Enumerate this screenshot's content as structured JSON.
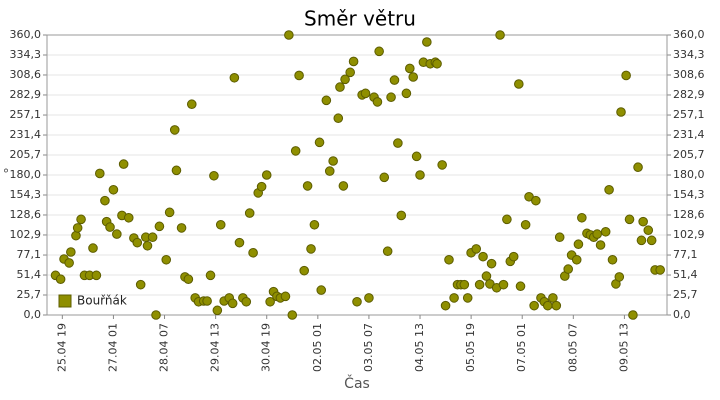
{
  "chart_data": {
    "type": "scatter",
    "title": "Směr větru",
    "x_label": "Čas",
    "y_label": "°",
    "x": [
      "25.04 15",
      "25.04 18",
      "25.04 20",
      "25.04 23",
      "26.04 00",
      "26.04 03",
      "26.04 04",
      "26.04 06",
      "26.04 08",
      "26.04 11",
      "26.04 13",
      "26.04 15",
      "26.04 17",
      "26.04 20",
      "26.04 21",
      "26.04 23",
      "27.04 01",
      "27.04 03",
      "27.04 06",
      "27.04 07",
      "27.04 10",
      "27.04 13",
      "27.04 15",
      "27.04 17",
      "27.04 20",
      "27.04 21",
      "28.04 00",
      "28.04 02",
      "28.04 04",
      "28.04 08",
      "28.04 10",
      "28.04 13",
      "28.04 14",
      "28.04 17",
      "28.04 19",
      "28.04 21",
      "28.04 23",
      "29.04 01",
      "29.04 03",
      "29.04 06",
      "29.04 08",
      "29.04 10",
      "29.04 12",
      "29.04 14",
      "29.04 16",
      "29.04 18",
      "29.04 21",
      "29.04 23",
      "30.04 00",
      "30.04 03",
      "30.04 05",
      "30.04 07",
      "30.04 09",
      "30.04 11",
      "30.04 14",
      "30.04 16",
      "30.04 19",
      "30.04 21",
      "30.04 23",
      "01.05 01",
      "01.05 03",
      "01.05 06",
      "01.05 08",
      "01.05 10",
      "01.05 12",
      "01.05 14",
      "01.05 17",
      "01.05 19",
      "01.05 21",
      "01.05 23",
      "02.05 02",
      "02.05 03",
      "02.05 06",
      "02.05 08",
      "02.05 10",
      "02.05 13",
      "02.05 14",
      "02.05 16",
      "02.05 17",
      "02.05 20",
      "02.05 22",
      "03.05 00",
      "03.05 03",
      "03.05 05",
      "03.05 07",
      "03.05 10",
      "03.05 12",
      "03.05 13",
      "03.05 16",
      "03.05 18",
      "03.05 20",
      "03.05 22",
      "04.05 00",
      "04.05 02",
      "04.05 05",
      "04.05 07",
      "04.05 09",
      "04.05 11",
      "04.05 13",
      "04.05 15",
      "04.05 17",
      "04.05 19",
      "04.05 22",
      "04.05 23",
      "05.05 02",
      "05.05 04",
      "05.05 06",
      "05.05 09",
      "05.05 11",
      "05.05 13",
      "05.05 15",
      "05.05 17",
      "05.05 19",
      "05.05 22",
      "06.05 00",
      "06.05 02",
      "06.05 04",
      "06.05 06",
      "06.05 07",
      "06.05 10",
      "06.05 12",
      "06.05 14",
      "06.05 16",
      "06.05 18",
      "06.05 20",
      "06.05 23",
      "07.05 00",
      "07.05 03",
      "07.05 05",
      "07.05 08",
      "07.05 09",
      "07.05 12",
      "07.05 14",
      "07.05 16",
      "07.05 19",
      "07.05 21",
      "07.05 23",
      "08.05 02",
      "08.05 04",
      "08.05 06",
      "08.05 09",
      "08.05 10",
      "08.05 12",
      "08.05 15",
      "08.05 17",
      "08.05 19",
      "08.05 21",
      "08.05 23",
      "09.05 02",
      "09.05 04",
      "09.05 06",
      "09.05 08",
      "09.05 10",
      "09.05 11",
      "09.05 14",
      "09.05 16",
      "09.05 18",
      "09.05 21",
      "09.05 23",
      "10.05 00",
      "10.05 03",
      "10.05 05",
      "10.05 07",
      "10.05 10"
    ],
    "series": [
      {
        "name": "Bouřňák",
        "color": "#8f8f00",
        "values": [
          51,
          46,
          72,
          67,
          81,
          102,
          112,
          123,
          51,
          51,
          86,
          51,
          182,
          147,
          120,
          113,
          161,
          104,
          128,
          194,
          125,
          99,
          93,
          39,
          100,
          89,
          100,
          0,
          114,
          71,
          132,
          238,
          186,
          112,
          49,
          46,
          271,
          22,
          17,
          18,
          18,
          51,
          179,
          6,
          116,
          18,
          22,
          15,
          305,
          93,
          22,
          17,
          131,
          80,
          157,
          165,
          180,
          17,
          30,
          24,
          22,
          24,
          360,
          0,
          211,
          308,
          57,
          166,
          85,
          116,
          222,
          32,
          276,
          185,
          198,
          253,
          293,
          166,
          303,
          312,
          326,
          17,
          283,
          285,
          22,
          280,
          274,
          339,
          177,
          82,
          280,
          302,
          221,
          128,
          285,
          317,
          306,
          204,
          180,
          325,
          351,
          323,
          325,
          323,
          193,
          12,
          71,
          22,
          39,
          39,
          39,
          22,
          80,
          85,
          39,
          75,
          50,
          40,
          66,
          35,
          360,
          39,
          123,
          69,
          75,
          297,
          37,
          116,
          152,
          12,
          147,
          22,
          17,
          12,
          22,
          12,
          100,
          50,
          59,
          77,
          71,
          91,
          125,
          105,
          103,
          100,
          104,
          90,
          107,
          161,
          71,
          40,
          49,
          261,
          308,
          123,
          0,
          190,
          96,
          120,
          109,
          96,
          58,
          58
        ]
      }
    ],
    "xlim": [
      "25.04 10",
      "10.05 14"
    ],
    "xticks": [
      "25.04 19",
      "27.04 01",
      "28.04 07",
      "29.04 13",
      "30.04 19",
      "02.05 01",
      "03.05 07",
      "04.05 13",
      "05.05 19",
      "07.05 01",
      "08.05 07",
      "09.05 13"
    ],
    "ylim": [
      0,
      360
    ],
    "yticks": [
      {
        "value": 0,
        "label": "0,0"
      },
      {
        "value": 25.7,
        "label": "25,7"
      },
      {
        "value": 51.4,
        "label": "51,4"
      },
      {
        "value": 77.1,
        "label": "77,1"
      },
      {
        "value": 102.9,
        "label": "102,9"
      },
      {
        "value": 128.6,
        "label": "128,6"
      },
      {
        "value": 154.3,
        "label": "154,3"
      },
      {
        "value": 180,
        "label": "180,0"
      },
      {
        "value": 205.7,
        "label": "205,7"
      },
      {
        "value": 231.4,
        "label": "231,4"
      },
      {
        "value": 257.1,
        "label": "257,1"
      },
      {
        "value": 282.9,
        "label": "282,9"
      },
      {
        "value": 308.6,
        "label": "308,6"
      },
      {
        "value": 334.3,
        "label": "334,3"
      },
      {
        "value": 360,
        "label": "360,0"
      }
    ],
    "grid": true,
    "legend": "lower left"
  }
}
